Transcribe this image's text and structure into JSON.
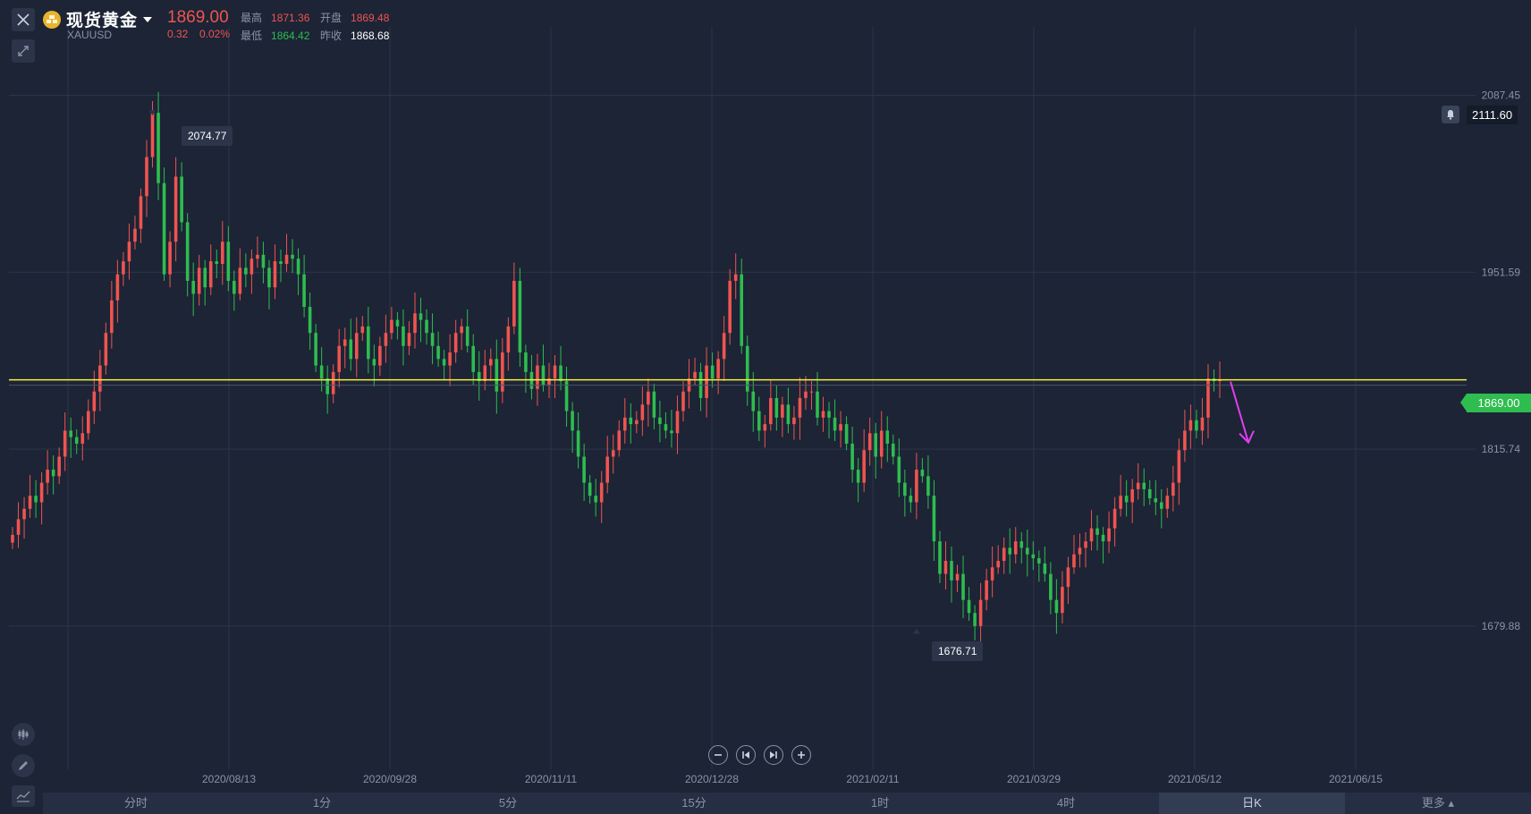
{
  "header": {
    "symbol_name": "现货黄金",
    "symbol_code": "XAUUSD",
    "last_price": "1869.00",
    "change": "0.32",
    "change_pct": "0.02%",
    "high_label": "最高",
    "high_value": "1871.36",
    "open_label": "开盘",
    "open_value": "1869.48",
    "low_label": "最低",
    "low_value": "1864.42",
    "prev_close_label": "昨收",
    "prev_close_value": "1868.68"
  },
  "alert": {
    "value": "2111.60",
    "icon": "bell-icon"
  },
  "current_tag": "1869.00",
  "annotations": {
    "peak": "2074.77",
    "trough": "1676.71"
  },
  "zoom_controls": {
    "zoom_out": "−",
    "jump_start": "⏮",
    "jump_end": "⏭",
    "zoom_in": "+"
  },
  "tabs": [
    "分时",
    "1分",
    "5分",
    "15分",
    "1时",
    "4时",
    "日K",
    "更多"
  ],
  "active_tab": "日K",
  "colors": {
    "up": "#f0544f",
    "down": "#2ebd4e",
    "hline": "#f6ef3c",
    "arrow": "#e23ef0",
    "background": "#1c2436"
  },
  "chart_data": {
    "type": "candlestick",
    "y_ticks": [
      "2087.45",
      "1951.59",
      "1815.74",
      "1679.88"
    ],
    "x_ticks": [
      "2020/08/13",
      "2020/09/28",
      "2020/11/11",
      "2020/12/28",
      "2021/02/11",
      "2021/03/29",
      "2021/05/12",
      "2021/06/15"
    ],
    "ylim": [
      1570,
      2140
    ],
    "horizontal_line": 1869.0,
    "high_marker": 2074.77,
    "low_marker": 1676.71,
    "close_series": [
      1750,
      1762,
      1770,
      1780,
      1775,
      1790,
      1800,
      1795,
      1810,
      1830,
      1825,
      1820,
      1828,
      1845,
      1860,
      1880,
      1905,
      1930,
      1950,
      1960,
      1975,
      1985,
      2010,
      2040,
      2074,
      2020,
      1950,
      1975,
      2025,
      1990,
      1945,
      1935,
      1955,
      1940,
      1960,
      1958,
      1975,
      1945,
      1935,
      1955,
      1950,
      1962,
      1965,
      1955,
      1940,
      1960,
      1958,
      1965,
      1962,
      1950,
      1925,
      1905,
      1880,
      1870,
      1858,
      1875,
      1895,
      1900,
      1885,
      1905,
      1910,
      1885,
      1880,
      1895,
      1905,
      1915,
      1910,
      1895,
      1905,
      1920,
      1915,
      1905,
      1895,
      1885,
      1880,
      1890,
      1905,
      1910,
      1895,
      1875,
      1868,
      1880,
      1885,
      1860,
      1890,
      1910,
      1945,
      1890,
      1875,
      1862,
      1880,
      1865,
      1870,
      1880,
      1868,
      1845,
      1830,
      1810,
      1790,
      1780,
      1775,
      1790,
      1810,
      1815,
      1830,
      1840,
      1835,
      1838,
      1850,
      1860,
      1840,
      1835,
      1830,
      1828,
      1845,
      1860,
      1870,
      1875,
      1855,
      1880,
      1870,
      1885,
      1905,
      1945,
      1950,
      1895,
      1860,
      1845,
      1830,
      1835,
      1855,
      1840,
      1850,
      1835,
      1840,
      1855,
      1860,
      1860,
      1840,
      1845,
      1840,
      1830,
      1835,
      1820,
      1800,
      1790,
      1815,
      1828,
      1810,
      1830,
      1820,
      1810,
      1790,
      1780,
      1775,
      1800,
      1795,
      1780,
      1745,
      1720,
      1730,
      1715,
      1720,
      1700,
      1690,
      1680,
      1700,
      1715,
      1725,
      1730,
      1740,
      1735,
      1745,
      1740,
      1735,
      1732,
      1728,
      1720,
      1700,
      1690,
      1710,
      1725,
      1735,
      1740,
      1745,
      1755,
      1750,
      1745,
      1755,
      1770,
      1780,
      1775,
      1785,
      1790,
      1785,
      1778,
      1775,
      1770,
      1780,
      1790,
      1815,
      1830,
      1838,
      1830,
      1840,
      1870,
      1868,
      1869
    ]
  }
}
